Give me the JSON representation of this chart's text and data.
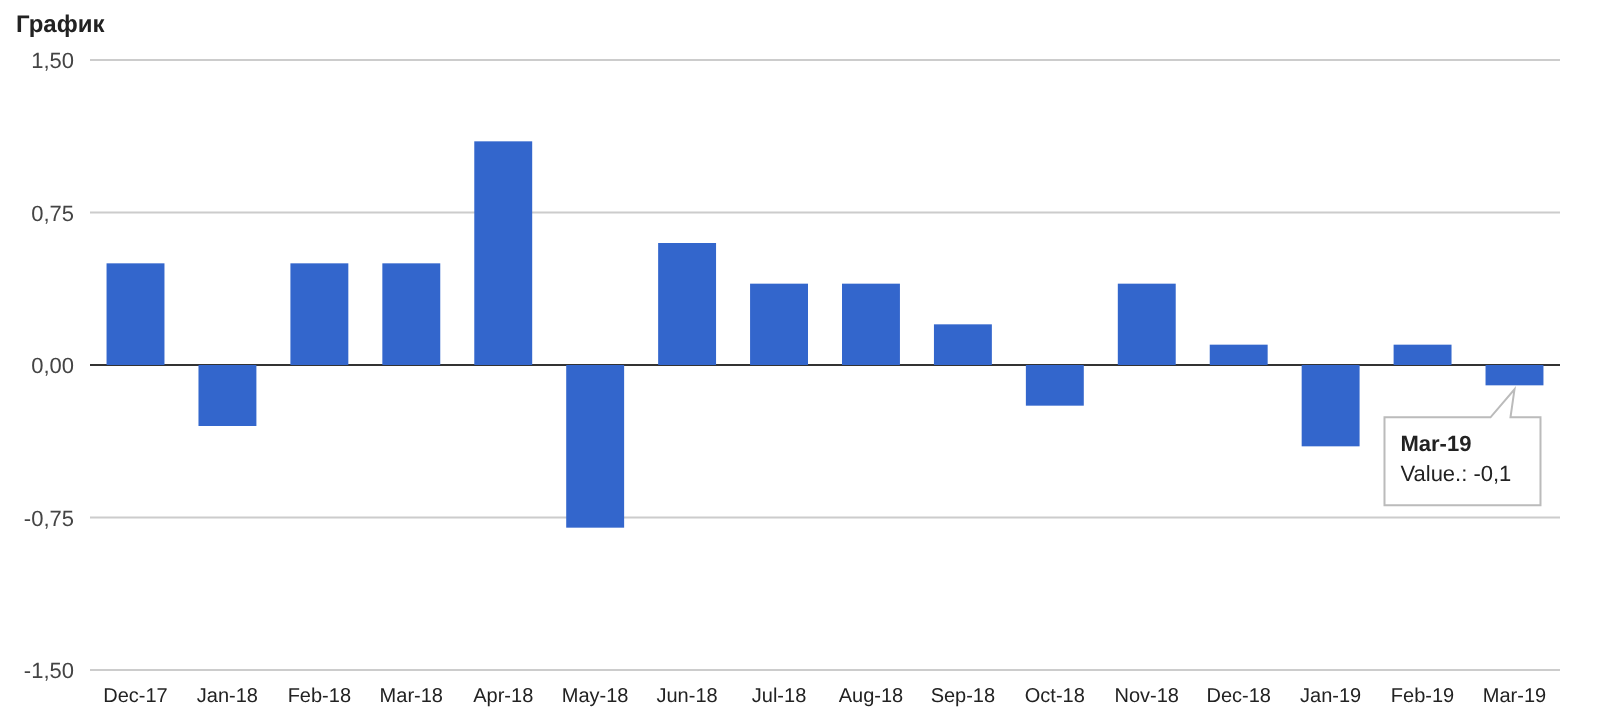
{
  "chart_data": {
    "type": "bar",
    "title": "График",
    "categories": [
      "Dec-17",
      "Jan-18",
      "Feb-18",
      "Mar-18",
      "Apr-18",
      "May-18",
      "Jun-18",
      "Jul-18",
      "Aug-18",
      "Sep-18",
      "Oct-18",
      "Nov-18",
      "Dec-18",
      "Jan-19",
      "Feb-19",
      "Mar-19"
    ],
    "values": [
      0.5,
      -0.3,
      0.5,
      0.5,
      1.1,
      -0.8,
      0.6,
      0.4,
      0.4,
      0.2,
      -0.2,
      0.4,
      0.1,
      -0.4,
      0.1,
      -0.1
    ],
    "color": "#3366cc",
    "ylim": [
      -1.5,
      1.5
    ],
    "yticks": [
      {
        "value": -1.5,
        "label": "-1,50"
      },
      {
        "value": -0.75,
        "label": "-0,75"
      },
      {
        "value": 0,
        "label": "0,00"
      },
      {
        "value": 0.75,
        "label": "0,75"
      },
      {
        "value": 1.5,
        "label": "1,50"
      }
    ],
    "grid": "y",
    "annotations": [
      {
        "text": "Mar-19\nValue.: -0,1",
        "x": "Mar-19",
        "y": -0.1
      }
    ]
  }
}
